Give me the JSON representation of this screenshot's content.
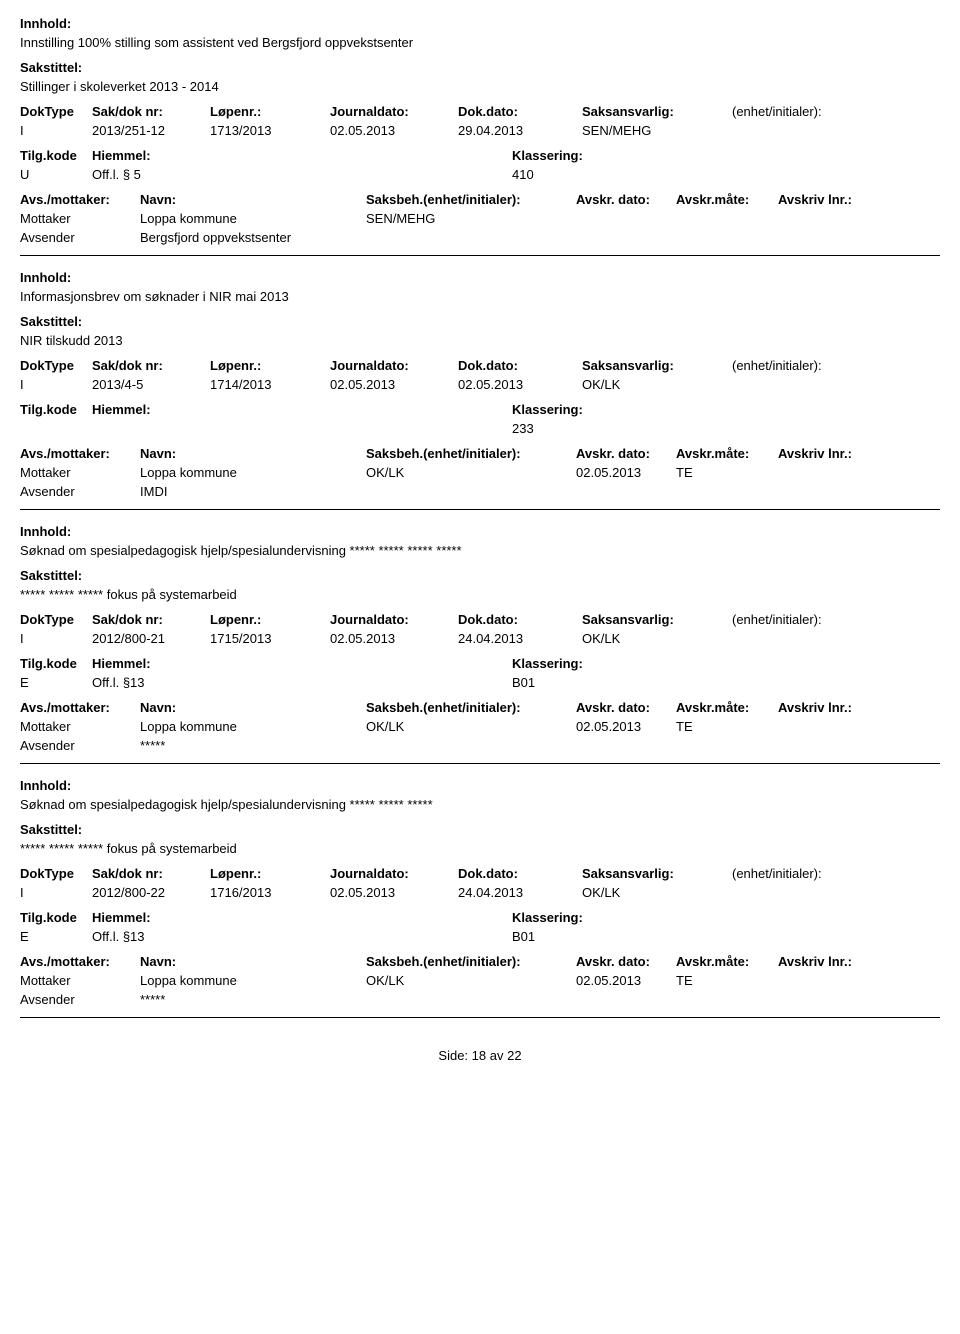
{
  "labels": {
    "innhold": "Innhold:",
    "sakstittel": "Sakstittel:",
    "doktype": "DokType",
    "sakdok": "Sak/dok nr:",
    "lopenr": "Løpenr.:",
    "journaldato": "Journaldato:",
    "dokdato": "Dok.dato:",
    "saksansvarlig": "Saksansvarlig:",
    "enhet": "(enhet/initialer):",
    "tilgkode": "Tilg.kode",
    "hjemmel": "Hiemmel:",
    "klassering": "Klassering:",
    "avsmottaker": "Avs./mottaker:",
    "navn": "Navn:",
    "saksbeh": "Saksbeh.(enhet/initialer):",
    "avskrdato": "Avskr. dato:",
    "avskrmate": "Avskr.måte:",
    "avskrivlnr": "Avskriv lnr.:",
    "mottaker": "Mottaker",
    "avsender": "Avsender"
  },
  "records": [
    {
      "innhold": "Innstilling 100% stilling som assistent ved Bergsfjord oppvekstsenter",
      "sakstittel": "Stillinger i skoleverket 2013 - 2014",
      "doktype": "I",
      "sakdok": "2013/251-12",
      "lopenr": "1713/2013",
      "journaldato": "02.05.2013",
      "dokdato": "29.04.2013",
      "saksansvarlig": "SEN/MEHG",
      "tilgkode": "U",
      "hjemmel": "Off.l. § 5",
      "klassering": "410",
      "mottaker_navn": "Loppa kommune",
      "saksbeh_val": "SEN/MEHG",
      "avskr_dato": "",
      "avskr_mate": "",
      "avsender_navn": "Bergsfjord oppvekstsenter"
    },
    {
      "innhold": "Informasjonsbrev om søknader i NIR mai 2013",
      "sakstittel": "NIR tilskudd 2013",
      "doktype": "I",
      "sakdok": "2013/4-5",
      "lopenr": "1714/2013",
      "journaldato": "02.05.2013",
      "dokdato": "02.05.2013",
      "saksansvarlig": "OK/LK",
      "tilgkode": "",
      "hjemmel": "",
      "klassering": "233",
      "mottaker_navn": "Loppa kommune",
      "saksbeh_val": "OK/LK",
      "avskr_dato": "02.05.2013",
      "avskr_mate": "TE",
      "avsender_navn": "IMDI"
    },
    {
      "innhold": "Søknad om spesialpedagogisk hjelp/spesialundervisning ***** ***** ***** *****",
      "sakstittel": "***** ***** ***** fokus på systemarbeid",
      "doktype": "I",
      "sakdok": "2012/800-21",
      "lopenr": "1715/2013",
      "journaldato": "02.05.2013",
      "dokdato": "24.04.2013",
      "saksansvarlig": "OK/LK",
      "tilgkode": "E",
      "hjemmel": "Off.l. §13",
      "klassering": "B01",
      "mottaker_navn": "Loppa kommune",
      "saksbeh_val": "OK/LK",
      "avskr_dato": "02.05.2013",
      "avskr_mate": "TE",
      "avsender_navn": "*****"
    },
    {
      "innhold": "Søknad om spesialpedagogisk hjelp/spesialundervisning ***** ***** *****",
      "sakstittel": "***** ***** ***** fokus på systemarbeid",
      "doktype": "I",
      "sakdok": "2012/800-22",
      "lopenr": "1716/2013",
      "journaldato": "02.05.2013",
      "dokdato": "24.04.2013",
      "saksansvarlig": "OK/LK",
      "tilgkode": "E",
      "hjemmel": "Off.l. §13",
      "klassering": "B01",
      "mottaker_navn": "Loppa kommune",
      "saksbeh_val": "OK/LK",
      "avskr_dato": "02.05.2013",
      "avskr_mate": "TE",
      "avsender_navn": "*****"
    }
  ],
  "footer": {
    "side_label": "Side:",
    "page_cur": "18",
    "page_of": "av",
    "page_total": "22"
  }
}
